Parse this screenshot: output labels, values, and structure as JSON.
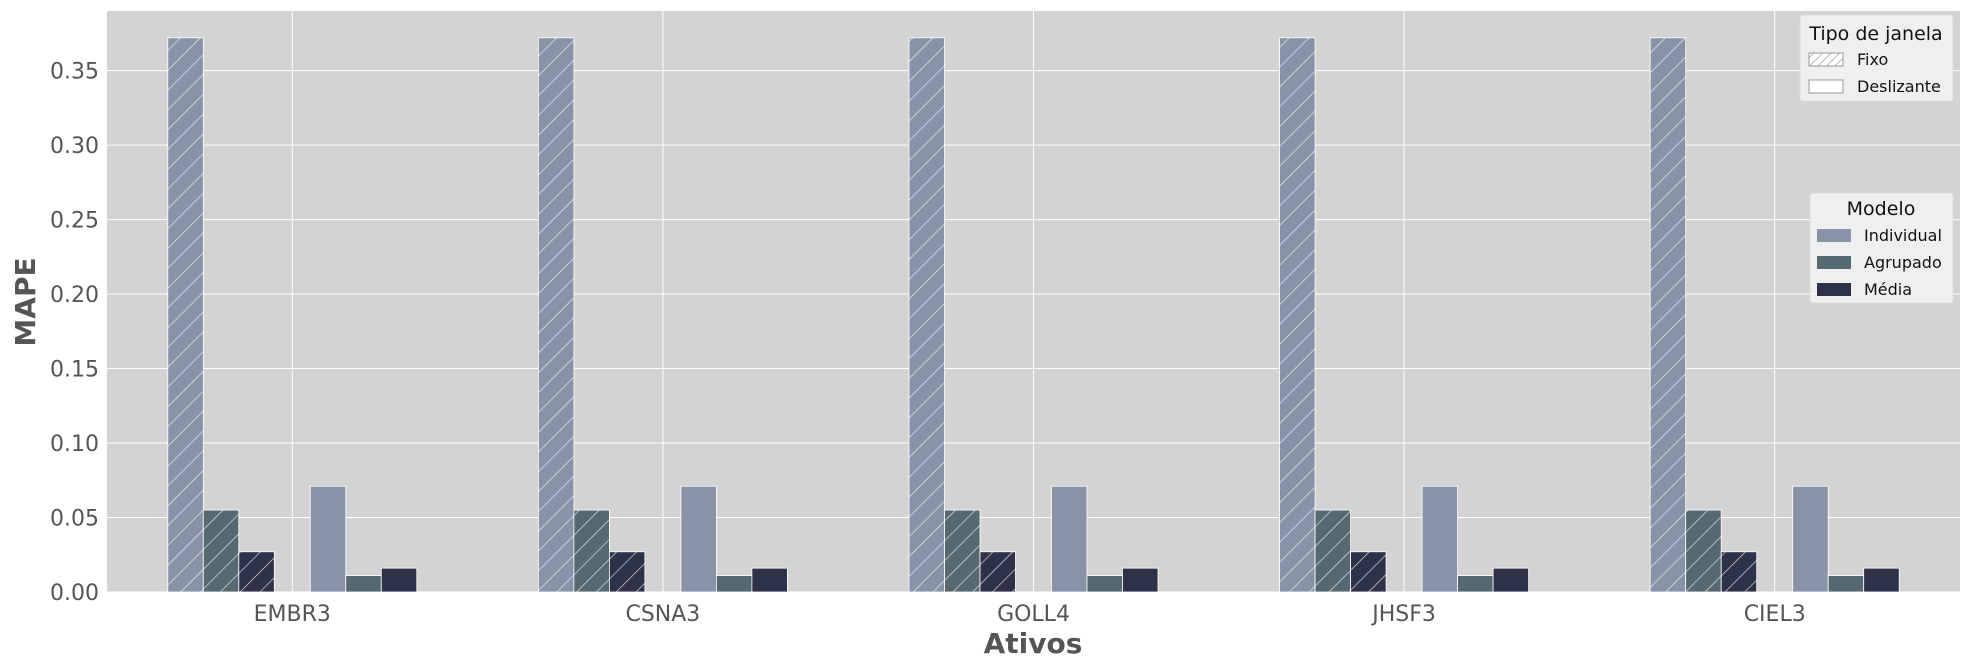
{
  "chart_data": {
    "type": "bar",
    "xlabel": "Ativos",
    "ylabel": "MAPE",
    "categories": [
      "EMBR3",
      "CSNA3",
      "GOLL4",
      "JHSF3",
      "CIEL3"
    ],
    "ylim": [
      0,
      0.39
    ],
    "yticks": [
      "0.00",
      "0.05",
      "0.10",
      "0.15",
      "0.20",
      "0.25",
      "0.30",
      "0.35"
    ],
    "grid": true,
    "groups": [
      {
        "name": "Fixo",
        "hatched": true,
        "series": [
          {
            "name": "Individual",
            "values": [
              0.372,
              0.372,
              0.372,
              0.372,
              0.372
            ]
          },
          {
            "name": "Agrupado",
            "values": [
              0.055,
              0.055,
              0.055,
              0.055,
              0.055
            ]
          },
          {
            "name": "Média",
            "values": [
              0.027,
              0.027,
              0.027,
              0.027,
              0.027
            ]
          }
        ]
      },
      {
        "name": "Deslizante",
        "hatched": false,
        "series": [
          {
            "name": "Individual",
            "values": [
              0.071,
              0.071,
              0.071,
              0.071,
              0.071
            ]
          },
          {
            "name": "Agrupado",
            "values": [
              0.011,
              0.011,
              0.011,
              0.011,
              0.011
            ]
          },
          {
            "name": "Média",
            "values": [
              0.016,
              0.016,
              0.016,
              0.016,
              0.016
            ]
          }
        ]
      }
    ],
    "legends": {
      "window": {
        "title": "Tipo de janela",
        "placement": "top-right",
        "items": [
          {
            "label": "Fixo",
            "hatched": true
          },
          {
            "label": "Deslizante",
            "hatched": false
          }
        ]
      },
      "model": {
        "title": "Modelo",
        "placement": "center-right",
        "items": [
          {
            "label": "Individual",
            "color": "#8893a8"
          },
          {
            "label": "Agrupado",
            "color": "#566870"
          },
          {
            "label": "Média",
            "color": "#2e3249"
          }
        ]
      }
    },
    "colors": {
      "Individual": "#8893a8",
      "Agrupado": "#566870",
      "Média": "#2e3249",
      "background": "#d3d3d3",
      "grid": "#ffffff"
    }
  }
}
